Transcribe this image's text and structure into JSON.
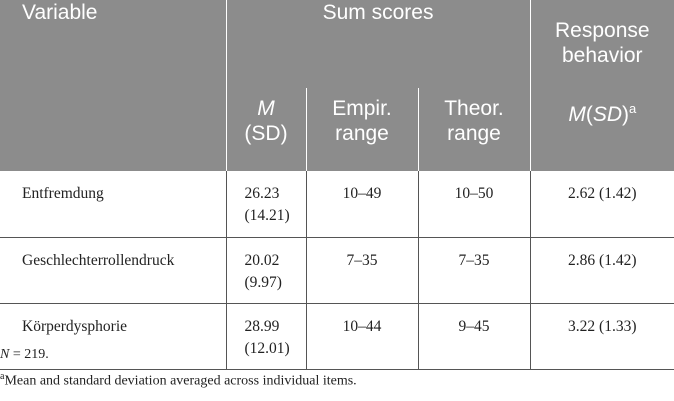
{
  "table": {
    "header_row1": {
      "variable": "Variable",
      "sum_scores": "Sum scores",
      "response_line1": "Response",
      "response_line2": "behavior"
    },
    "header_row2": {
      "m_label": "M",
      "sd_label": "(SD)",
      "empir_line1": "Empir.",
      "empir_line2": "range",
      "theor_line1": "Theor.",
      "theor_line2": "range",
      "msd_m": "M",
      "msd_open": "(",
      "msd_sd": "SD",
      "msd_close": ")",
      "msd_sup": "a"
    },
    "rows": [
      {
        "variable": "Entfremdung",
        "m": "26.23",
        "sd": "(14.21)",
        "empir": "10–49",
        "theor": "10–50",
        "response": "2.62 (1.42)"
      },
      {
        "variable": "Geschlechterrollendruck",
        "m": "20.02",
        "sd": "(9.97)",
        "empir": "7–35",
        "theor": "7–35",
        "response": "2.86 (1.42)"
      },
      {
        "variable": "Körperdysphorie",
        "m": "28.99",
        "sd": "(12.01)",
        "empir": "10–44",
        "theor": "9–45",
        "response": "3.22 (1.33)"
      }
    ]
  },
  "notes": {
    "n_label": "N",
    "n_eq": " = 219.",
    "footnote_sup": "a",
    "footnote_text": "Mean and standard deviation averaged across individual items."
  }
}
